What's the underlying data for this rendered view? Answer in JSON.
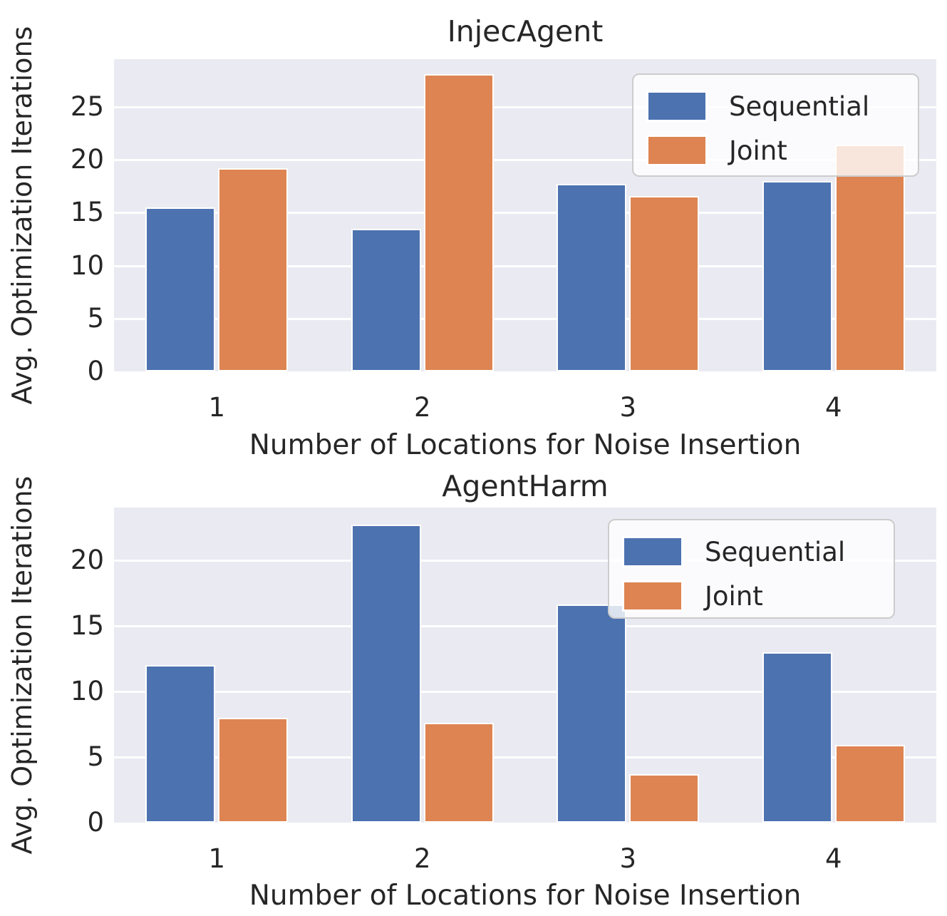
{
  "colors": {
    "sequential": "#4C72B0",
    "joint": "#DD8452",
    "plot_background": "#EAEAF2",
    "gridline": "#FFFFFF",
    "text": "#262626",
    "legend_background": "rgba(255,255,255,0.8)",
    "legend_border": "#CCCCCC"
  },
  "chart_data": [
    {
      "type": "bar",
      "title": "InjecAgent",
      "categories": [
        "1",
        "2",
        "3",
        "4"
      ],
      "series": [
        {
          "name": "Sequential",
          "values": [
            15.5,
            13.5,
            17.7,
            18.0
          ]
        },
        {
          "name": "Joint",
          "values": [
            19.2,
            28.1,
            16.6,
            21.4
          ]
        }
      ],
      "xlabel": "Number of Locations for Noise Insertion",
      "ylabel": "Avg. Optimization Iterations",
      "ylim": [
        0,
        29.5
      ],
      "yticks": [
        0,
        5,
        10,
        15,
        20,
        25
      ],
      "grid": true,
      "legend_position": "upper right"
    },
    {
      "type": "bar",
      "title": "AgentHarm",
      "categories": [
        "1",
        "2",
        "3",
        "4"
      ],
      "series": [
        {
          "name": "Sequential",
          "values": [
            12.0,
            22.7,
            16.6,
            13.0
          ]
        },
        {
          "name": "Joint",
          "values": [
            8.0,
            7.6,
            3.7,
            5.9
          ]
        }
      ],
      "xlabel": "Number of Locations for Noise Insertion",
      "ylabel": "Avg. Optimization Iterations",
      "ylim": [
        0,
        24
      ],
      "yticks": [
        0,
        5,
        10,
        15,
        20
      ],
      "grid": true,
      "legend_position": "upper right"
    }
  ]
}
